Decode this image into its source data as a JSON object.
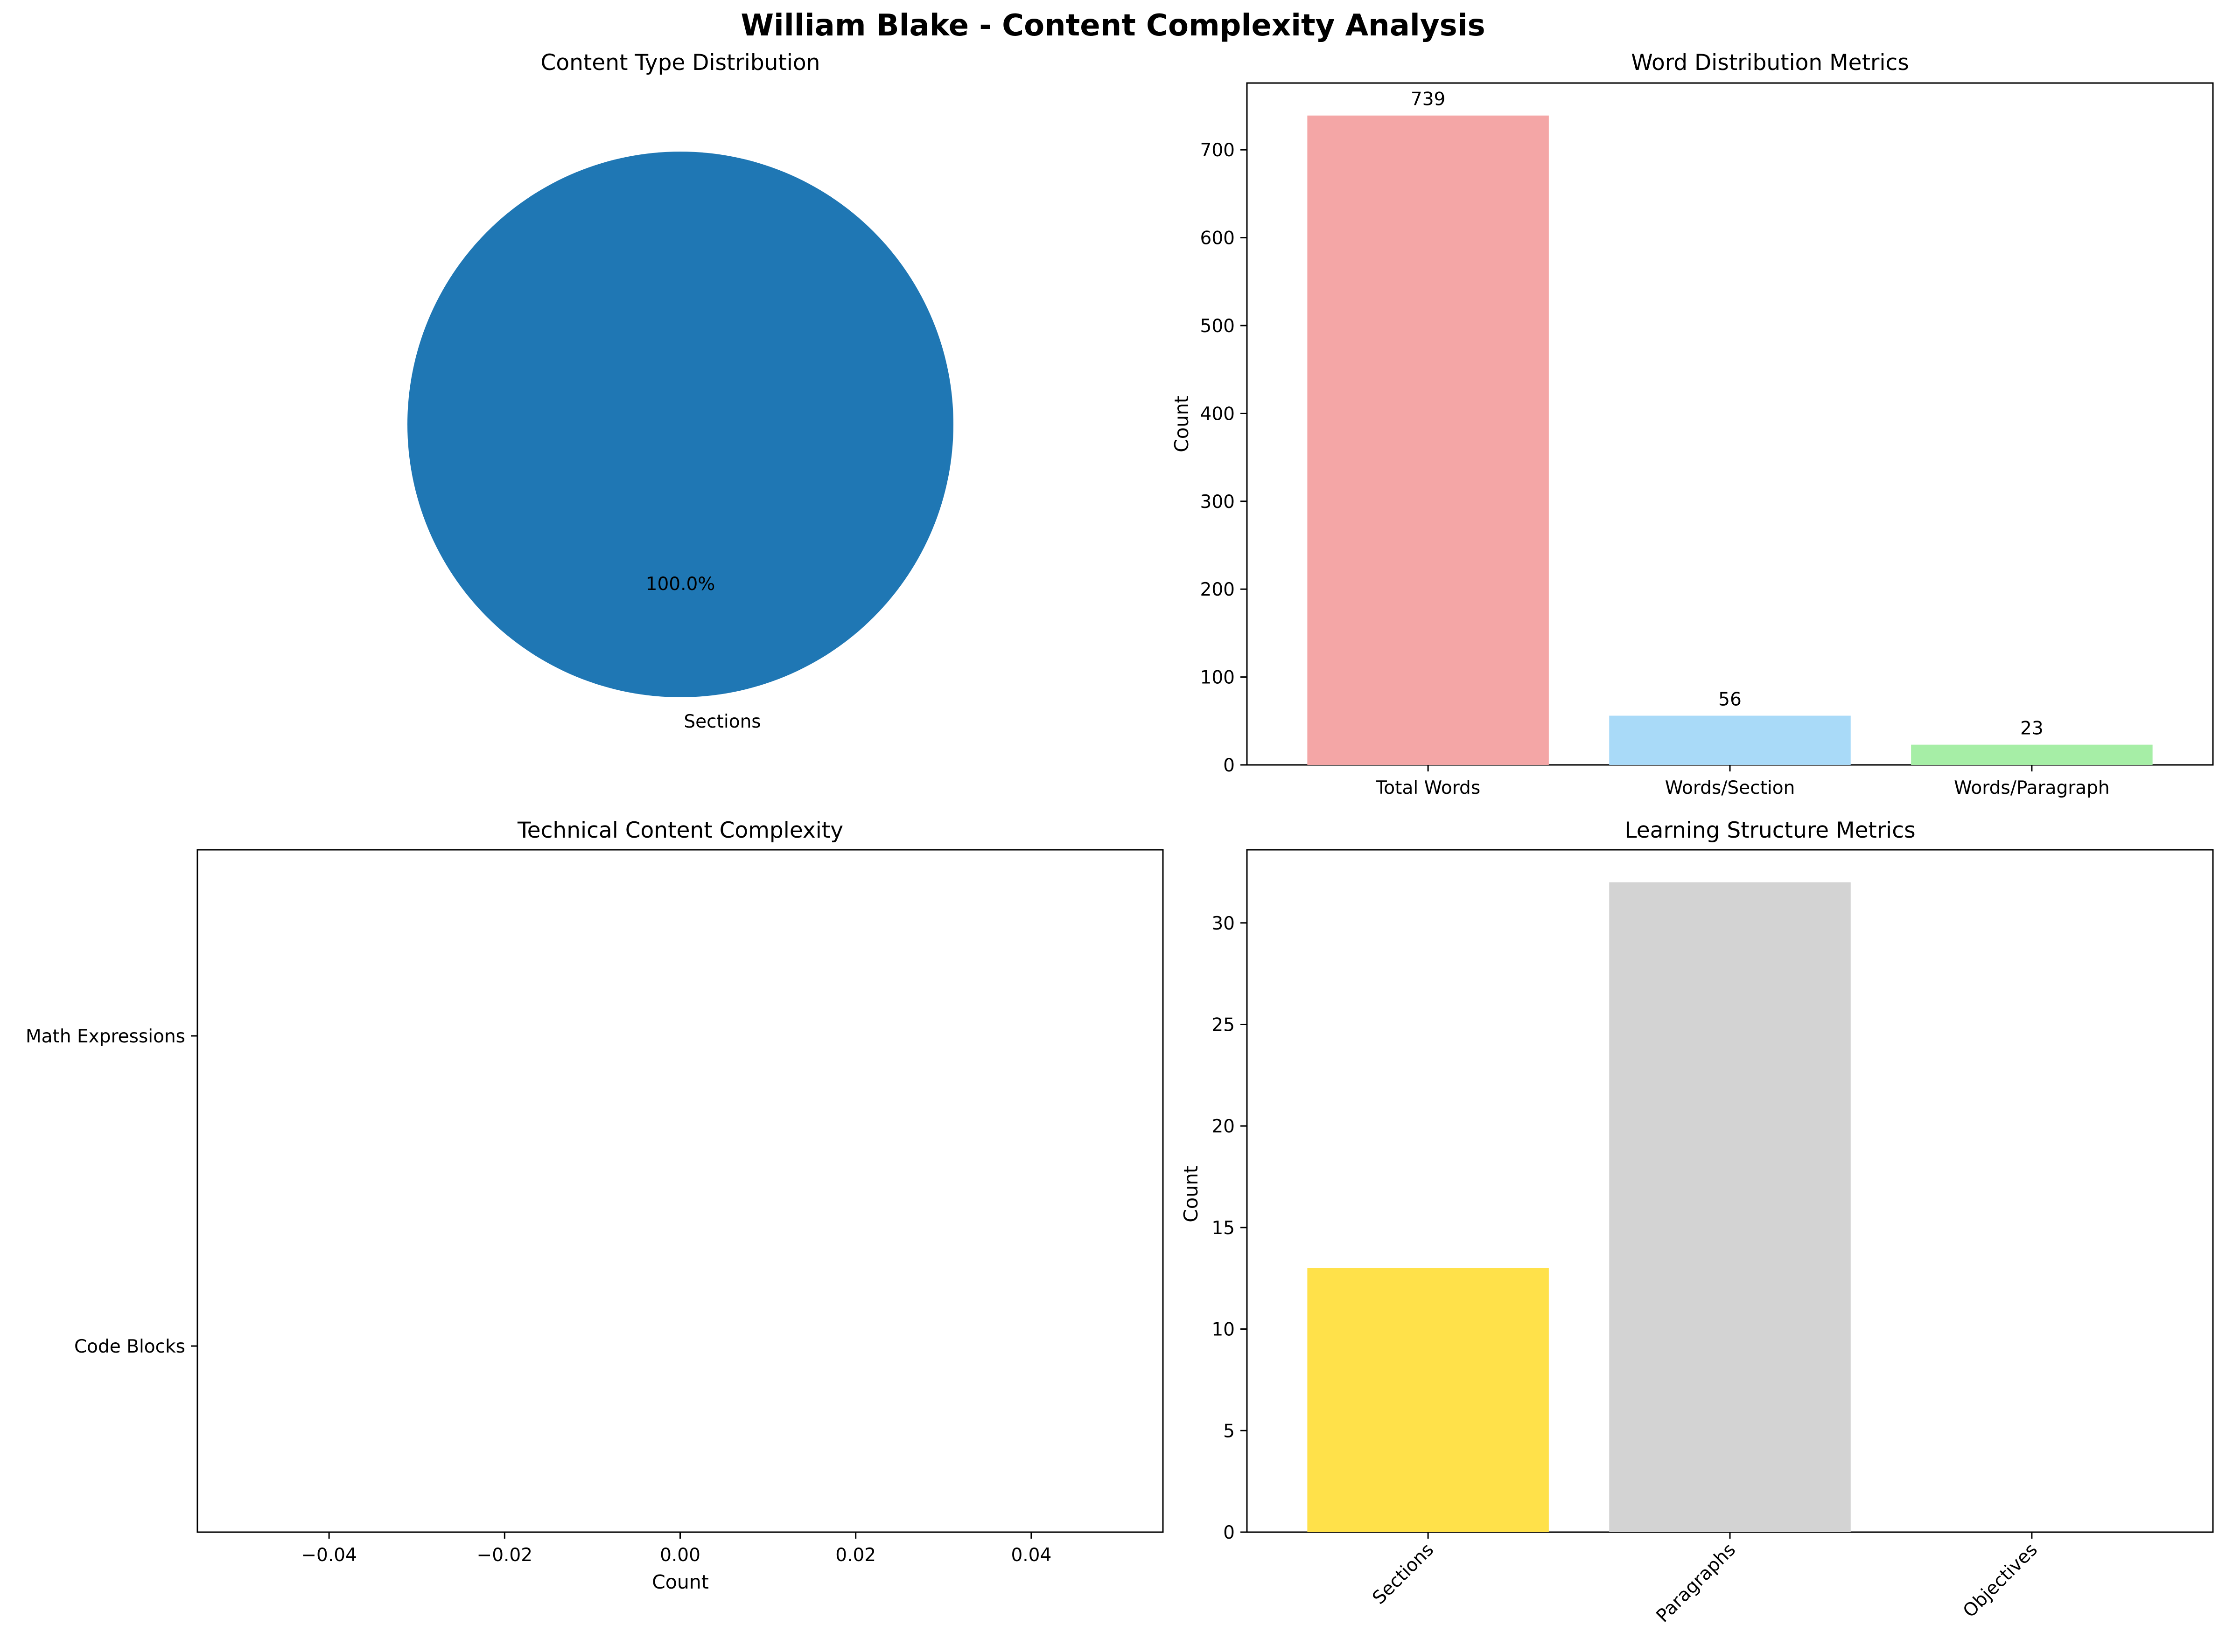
{
  "figure_title": "William Blake - Content Complexity Analysis",
  "colors": {
    "pie": "#1f77b4",
    "word_bars": [
      "#f4a6a6",
      "#a9daf8",
      "#a6eea6"
    ],
    "structure_bars": [
      "#ffe14a",
      "#d3d3d3",
      "#c8e6a0"
    ]
  },
  "chart_data": [
    {
      "type": "pie",
      "title": "Content Type Distribution",
      "labels": [
        "Sections"
      ],
      "values": [
        100
      ],
      "autopct": [
        "100.0%"
      ],
      "colors": [
        "#1f77b4"
      ]
    },
    {
      "type": "bar",
      "title": "Word Distribution Metrics",
      "categories": [
        "Total Words",
        "Words/Section",
        "Words/Paragraph"
      ],
      "values": [
        739,
        56,
        23
      ],
      "data_labels": [
        "739",
        "56",
        "23"
      ],
      "ylabel": "Count",
      "ylim": [
        0,
        776
      ],
      "yticks": [
        0,
        100,
        200,
        300,
        400,
        500,
        600,
        700
      ],
      "colors": [
        "#f4a6a6",
        "#a9daf8",
        "#a6eea6"
      ]
    },
    {
      "type": "bar",
      "orientation": "horizontal",
      "title": "Technical Content Complexity",
      "categories": [
        "Code Blocks",
        "Math Expressions"
      ],
      "values": [
        0,
        0
      ],
      "xlabel": "Count",
      "xlim": [
        -0.055,
        0.055
      ],
      "xticks": [
        -0.04,
        -0.02,
        0.0,
        0.02,
        0.04
      ],
      "xtick_labels": [
        "−0.04",
        "−0.02",
        "0.00",
        "0.02",
        "0.04"
      ]
    },
    {
      "type": "bar",
      "title": "Learning Structure Metrics",
      "categories": [
        "Sections",
        "Paragraphs",
        "Objectives"
      ],
      "values": [
        13,
        32,
        0
      ],
      "ylabel": "Count",
      "ylim": [
        0,
        33.6
      ],
      "yticks": [
        0,
        5,
        10,
        15,
        20,
        25,
        30
      ],
      "colors": [
        "#ffe14a",
        "#d3d3d3",
        "#c8e6a0"
      ]
    }
  ]
}
